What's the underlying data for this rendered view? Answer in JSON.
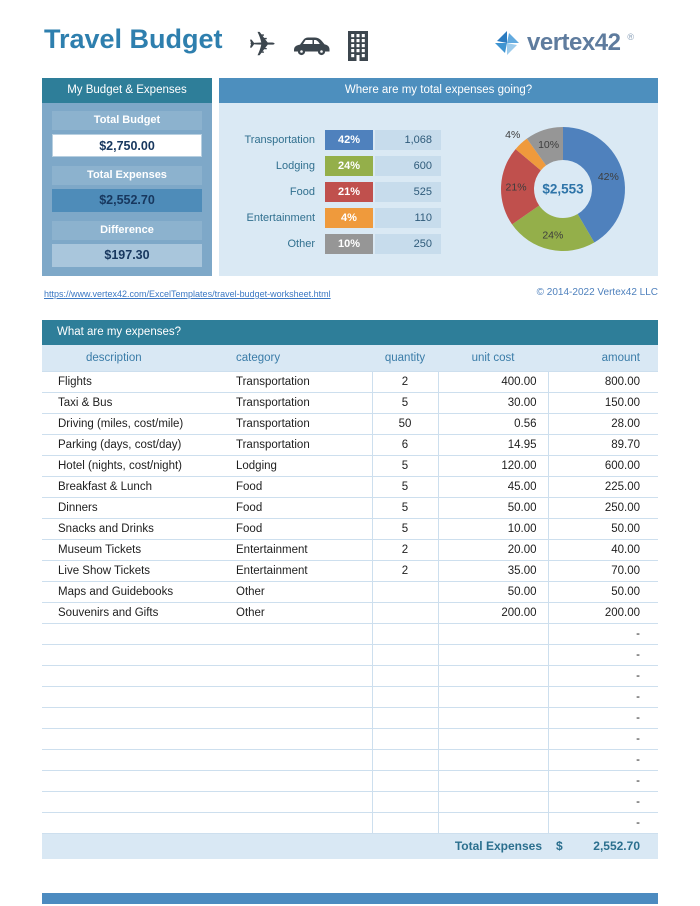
{
  "theme": {
    "teal_header": "#2E7E99",
    "blue_header": "#4D8FBE",
    "panel_bg": "#7EA8C8",
    "light_bg": "#DAE9F4",
    "navy_text": "#17375E",
    "accent_bar": "#4C8BC0"
  },
  "header": {
    "title": "Travel Budget",
    "icons": {
      "plane_glyph": "✈",
      "names": [
        "airplane",
        "car",
        "office-building"
      ]
    },
    "logo": {
      "text": "vertex42",
      "reg": "®"
    }
  },
  "budget": {
    "header": "My Budget & Expenses",
    "total_budget_label": "Total Budget",
    "total_budget_value": "$2,750.00",
    "total_expenses_label": "Total Expenses",
    "total_expenses_value": "$2,552.70",
    "difference_label": "Difference",
    "difference_value": "$197.30"
  },
  "breakdown": {
    "header": "Where are my total expenses going?",
    "rows": [
      {
        "category": "Transportation",
        "percent": "42%",
        "amount": "1,068",
        "color": "#4F81BD"
      },
      {
        "category": "Lodging",
        "percent": "24%",
        "amount": "600",
        "color": "#94AF4A"
      },
      {
        "category": "Food",
        "percent": "21%",
        "amount": "525",
        "color": "#C0504D"
      },
      {
        "category": "Entertainment",
        "percent": "4%",
        "amount": "110",
        "color": "#EF9A3C"
      },
      {
        "category": "Other",
        "percent": "10%",
        "amount": "250",
        "color": "#969696"
      }
    ]
  },
  "chart_data": {
    "type": "pie",
    "subtype": "donut",
    "title": "Where are my total expenses going?",
    "categories": [
      "Transportation",
      "Lodging",
      "Food",
      "Entertainment",
      "Other"
    ],
    "values": [
      42,
      24,
      21,
      4,
      10
    ],
    "amounts": [
      1068,
      600,
      525,
      110,
      250
    ],
    "colors": [
      "#4F81BD",
      "#94AF4A",
      "#C0504D",
      "#EF9A3C",
      "#969696"
    ],
    "labels": [
      "42%",
      "24%",
      "21%",
      "4%",
      "10%"
    ],
    "center_label": "$2,553",
    "legend_position": "left"
  },
  "footer_links": {
    "url": "https://www.vertex42.com/ExcelTemplates/travel-budget-worksheet.html",
    "copyright": "© 2014-2022 Vertex42 LLC"
  },
  "expenses": {
    "header": "What are my expenses?",
    "columns": [
      "description",
      "category",
      "quantity",
      "unit cost",
      "amount"
    ],
    "rows": [
      [
        "Flights",
        "Transportation",
        "2",
        "400.00",
        "800.00"
      ],
      [
        "Taxi & Bus",
        "Transportation",
        "5",
        "30.00",
        "150.00"
      ],
      [
        "Driving (miles, cost/mile)",
        "Transportation",
        "50",
        "0.56",
        "28.00"
      ],
      [
        "Parking (days, cost/day)",
        "Transportation",
        "6",
        "14.95",
        "89.70"
      ],
      [
        "Hotel (nights, cost/night)",
        "Lodging",
        "5",
        "120.00",
        "600.00"
      ],
      [
        "Breakfast & Lunch",
        "Food",
        "5",
        "45.00",
        "225.00"
      ],
      [
        "Dinners",
        "Food",
        "5",
        "50.00",
        "250.00"
      ],
      [
        "Snacks and Drinks",
        "Food",
        "5",
        "10.00",
        "50.00"
      ],
      [
        "Museum Tickets",
        "Entertainment",
        "2",
        "20.00",
        "40.00"
      ],
      [
        "Live Show Tickets",
        "Entertainment",
        "2",
        "35.00",
        "70.00"
      ],
      [
        "Maps and Guidebooks",
        "Other",
        "",
        "50.00",
        "50.00"
      ],
      [
        "Souvenirs and Gifts",
        "Other",
        "",
        "200.00",
        "200.00"
      ]
    ],
    "empty_row_count": 10,
    "empty_amount": "-",
    "total": {
      "label": "Total Expenses",
      "currency": "$",
      "value": "2,552.70"
    }
  }
}
